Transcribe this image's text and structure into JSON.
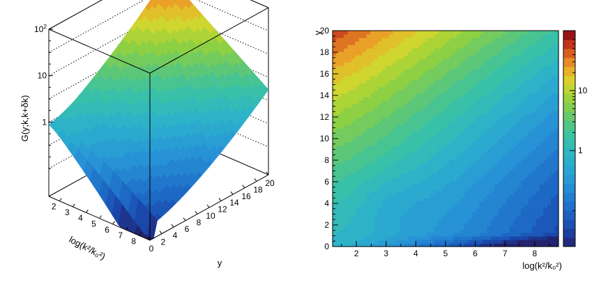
{
  "chart_data": [
    {
      "type": "surface",
      "zlabel": "G(y;k,k+δk)",
      "xlabel": "log(k²/k₀²)",
      "ylabel": "y",
      "x_ticks": [
        "2",
        "3",
        "4",
        "5",
        "6",
        "7",
        "8"
      ],
      "y_ticks": [
        "0",
        "2",
        "4",
        "6",
        "8",
        "10",
        "12",
        "14",
        "16",
        "18",
        "20"
      ],
      "z_ticks": [
        "1",
        "10",
        "10²"
      ],
      "xlim": [
        1.2,
        8.8
      ],
      "ylim": [
        0,
        20
      ],
      "zlim_log10": [
        -1.6,
        2.0
      ],
      "z_scale": "log",
      "grid": true,
      "colormap": "turbo",
      "corner_values": [
        {
          "x": 1.2,
          "y": 0,
          "z": 0.9
        },
        {
          "x": 8.8,
          "y": 0,
          "z": 0.03
        },
        {
          "x": 1.2,
          "y": 20,
          "z": 60
        },
        {
          "x": 8.8,
          "y": 20,
          "z": 5
        }
      ]
    },
    {
      "type": "heatmap",
      "xlabel": "log(k²/k₀²)",
      "ylabel": "y",
      "x_ticks": [
        "2",
        "3",
        "4",
        "5",
        "6",
        "7",
        "8"
      ],
      "y_ticks": [
        "0",
        "2",
        "4",
        "6",
        "8",
        "10",
        "12",
        "14",
        "16",
        "18",
        "20"
      ],
      "xlim": [
        1.2,
        8.8
      ],
      "ylim": [
        0,
        20
      ],
      "colorbar_ticks": [
        "1",
        "10"
      ],
      "colorbar_scale": "log",
      "colormap": "turbo",
      "min_region": {
        "x": [
          1.2,
          4.8
        ],
        "y": [
          2.5,
          6
        ]
      },
      "max_corner": {
        "x": 1.2,
        "y": 20,
        "z": 60
      }
    }
  ]
}
